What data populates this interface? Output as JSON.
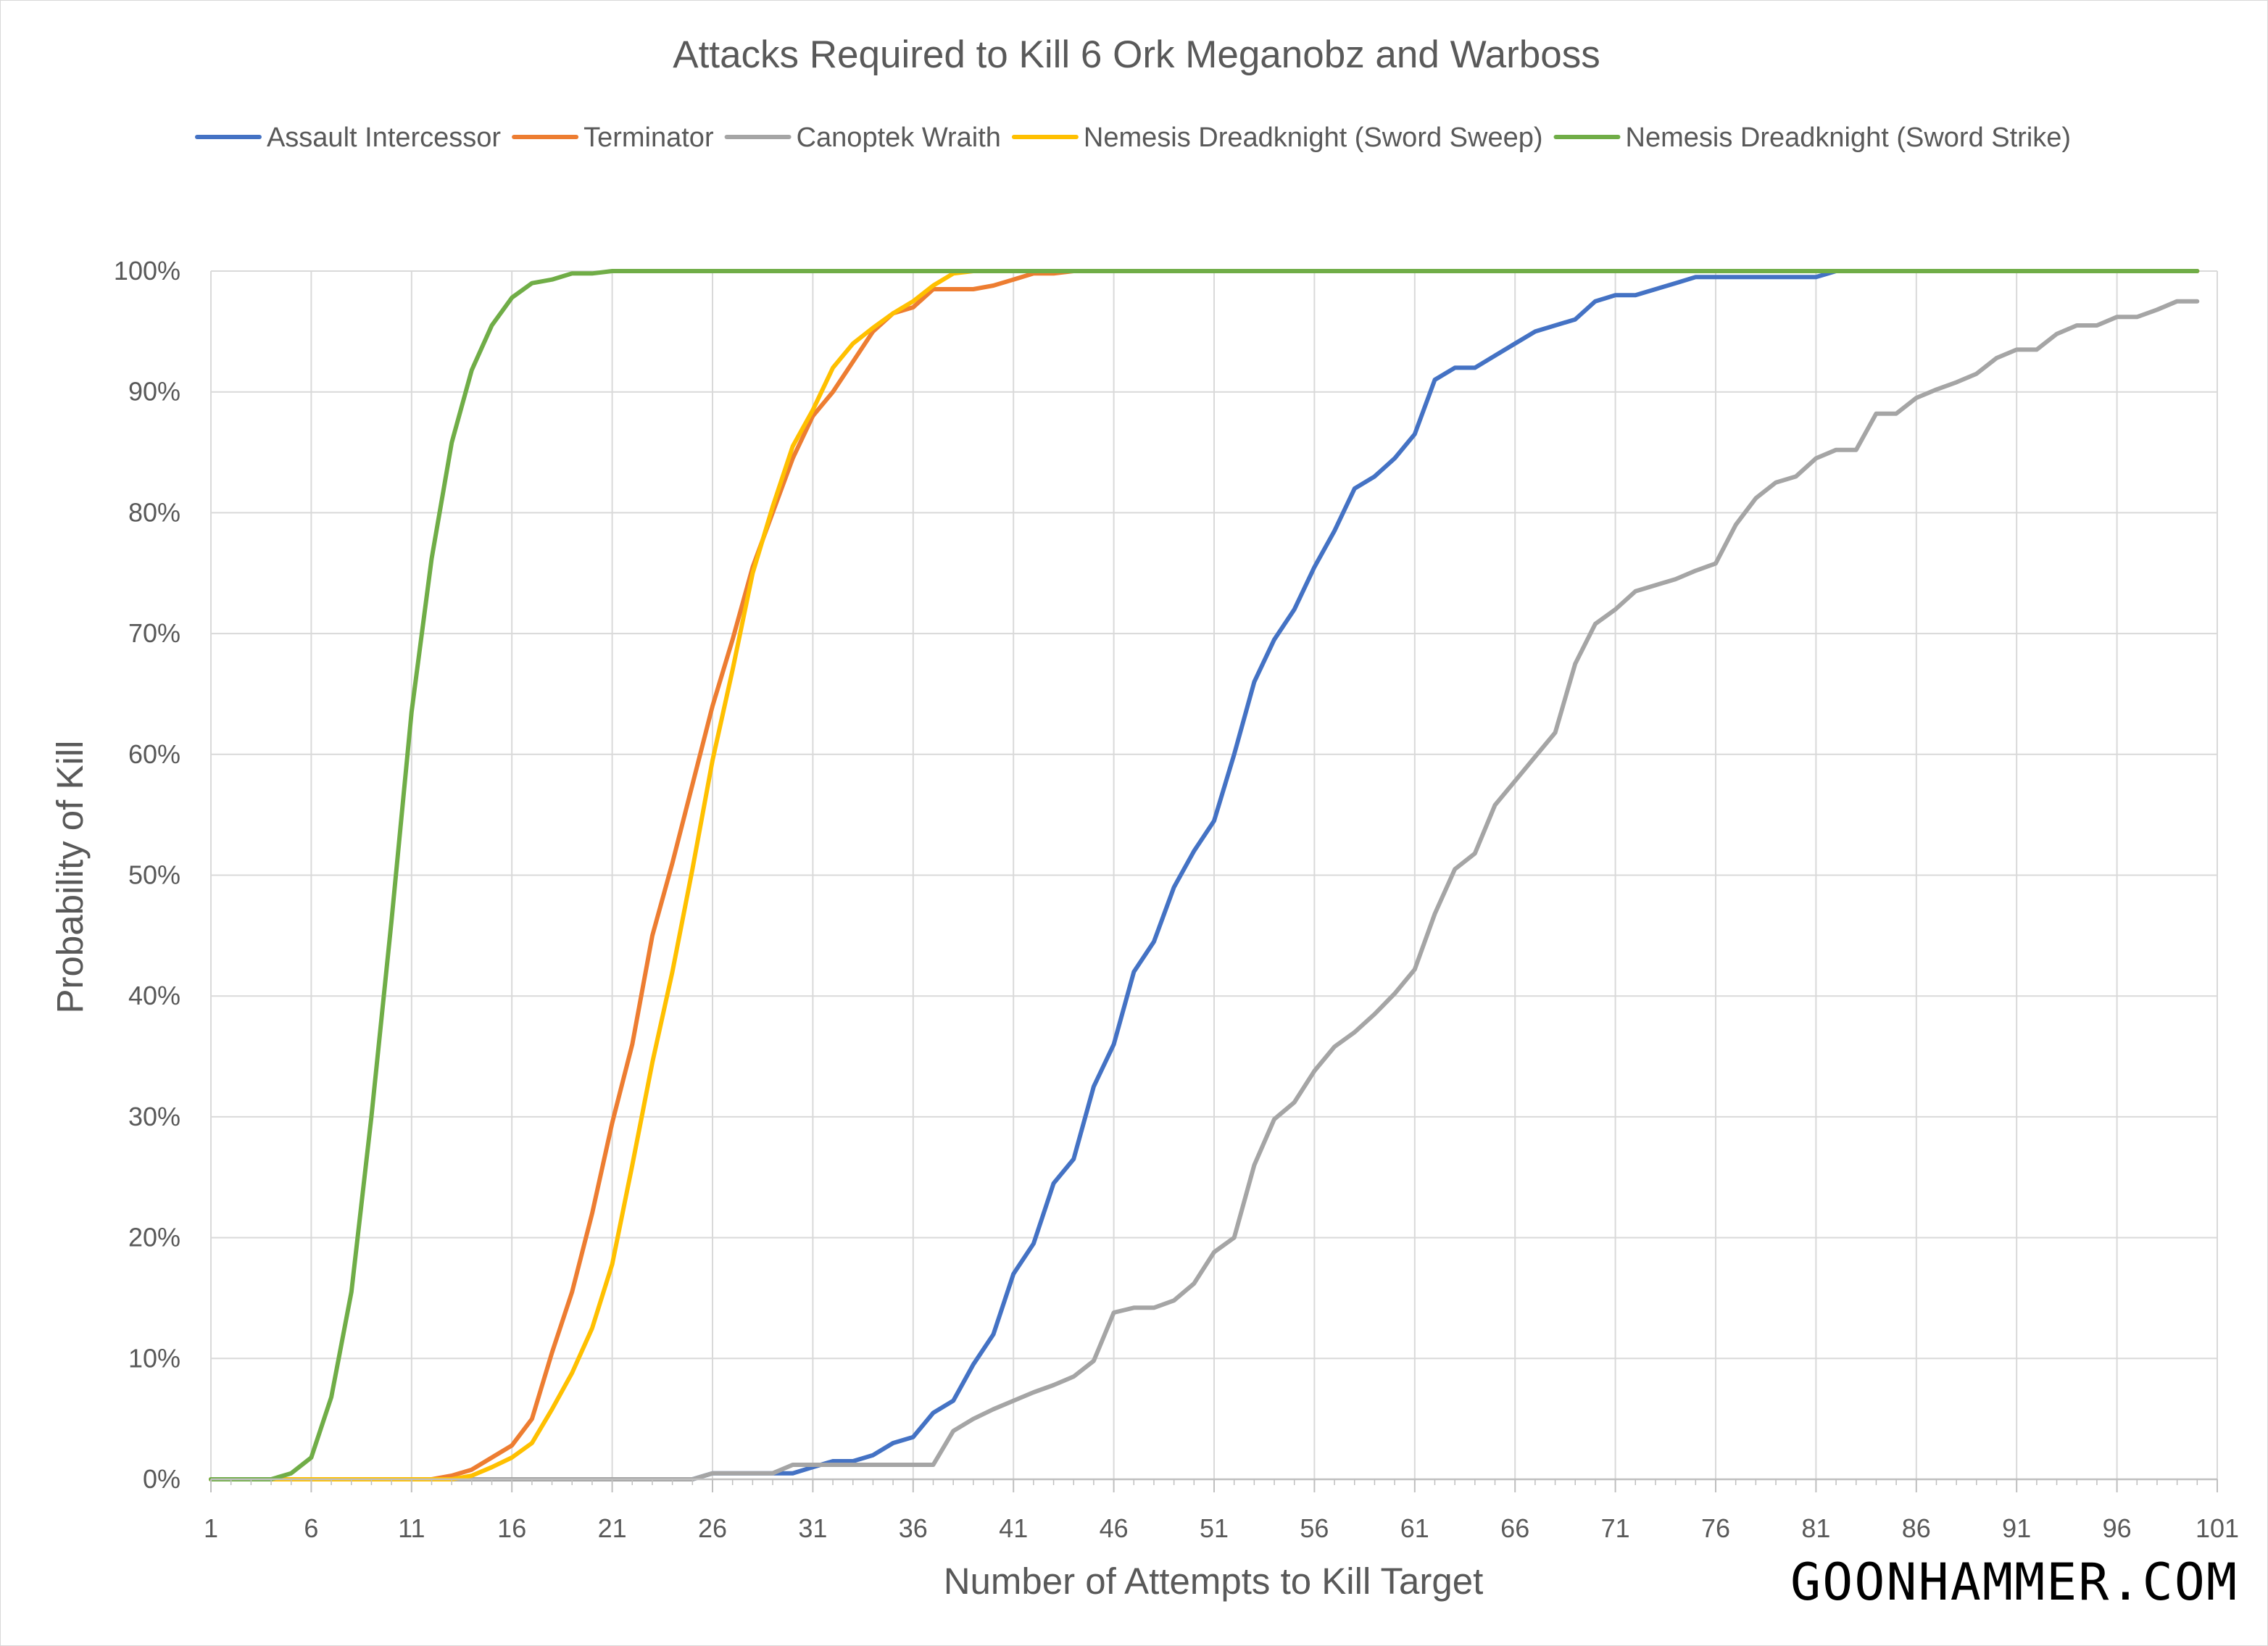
{
  "watermark": "GOONHAMMER.COM",
  "chart_data": {
    "type": "line",
    "title": "Attacks Required to Kill 6 Ork Meganobz and Warboss",
    "xlabel": "Number of Attempts to Kill Target",
    "ylabel": "Probability of Kill",
    "xlim": [
      1,
      101
    ],
    "ylim": [
      0,
      1
    ],
    "x_ticks": [
      1,
      6,
      11,
      16,
      21,
      26,
      31,
      36,
      41,
      46,
      51,
      56,
      61,
      66,
      71,
      76,
      81,
      86,
      91,
      96,
      101
    ],
    "y_ticks": [
      0,
      0.1,
      0.2,
      0.3,
      0.4,
      0.5,
      0.6,
      0.7,
      0.8,
      0.9,
      1.0
    ],
    "y_tick_labels": [
      "0%",
      "10%",
      "20%",
      "30%",
      "40%",
      "50%",
      "60%",
      "70%",
      "80%",
      "90%",
      "100%"
    ],
    "grid": true,
    "legend_position": "top",
    "series": [
      {
        "name": "Assault Intercessor",
        "color": "#4472C4",
        "points": [
          [
            1,
            0
          ],
          [
            25,
            0
          ],
          [
            26,
            0.005
          ],
          [
            30,
            0.005
          ],
          [
            31,
            0.01
          ],
          [
            32,
            0.015
          ],
          [
            33,
            0.015
          ],
          [
            34,
            0.02
          ],
          [
            35,
            0.03
          ],
          [
            36,
            0.035
          ],
          [
            37,
            0.055
          ],
          [
            38,
            0.065
          ],
          [
            39,
            0.095
          ],
          [
            40,
            0.12
          ],
          [
            41,
            0.17
          ],
          [
            42,
            0.195
          ],
          [
            43,
            0.245
          ],
          [
            44,
            0.265
          ],
          [
            45,
            0.325
          ],
          [
            46,
            0.36
          ],
          [
            47,
            0.42
          ],
          [
            48,
            0.445
          ],
          [
            49,
            0.49
          ],
          [
            50,
            0.52
          ],
          [
            51,
            0.545
          ],
          [
            52,
            0.6
          ],
          [
            53,
            0.66
          ],
          [
            54,
            0.695
          ],
          [
            55,
            0.72
          ],
          [
            56,
            0.755
          ],
          [
            57,
            0.785
          ],
          [
            58,
            0.82
          ],
          [
            59,
            0.83
          ],
          [
            60,
            0.845
          ],
          [
            61,
            0.865
          ],
          [
            62,
            0.91
          ],
          [
            63,
            0.92
          ],
          [
            64,
            0.92
          ],
          [
            65,
            0.93
          ],
          [
            66,
            0.94
          ],
          [
            67,
            0.95
          ],
          [
            68,
            0.955
          ],
          [
            69,
            0.96
          ],
          [
            70,
            0.975
          ],
          [
            71,
            0.98
          ],
          [
            72,
            0.98
          ],
          [
            73,
            0.985
          ],
          [
            74,
            0.99
          ],
          [
            75,
            0.995
          ],
          [
            76,
            0.995
          ],
          [
            80,
            0.995
          ],
          [
            81,
            0.995
          ],
          [
            82,
            1.0
          ],
          [
            100,
            1.0
          ]
        ]
      },
      {
        "name": "Terminator",
        "color": "#ED7D31",
        "points": [
          [
            1,
            0
          ],
          [
            12,
            0
          ],
          [
            13,
            0.003
          ],
          [
            14,
            0.008
          ],
          [
            15,
            0.018
          ],
          [
            16,
            0.028
          ],
          [
            17,
            0.05
          ],
          [
            18,
            0.105
          ],
          [
            19,
            0.155
          ],
          [
            20,
            0.22
          ],
          [
            21,
            0.295
          ],
          [
            22,
            0.36
          ],
          [
            23,
            0.45
          ],
          [
            24,
            0.51
          ],
          [
            25,
            0.575
          ],
          [
            26,
            0.64
          ],
          [
            27,
            0.695
          ],
          [
            28,
            0.755
          ],
          [
            29,
            0.8
          ],
          [
            30,
            0.845
          ],
          [
            31,
            0.88
          ],
          [
            32,
            0.9
          ],
          [
            33,
            0.925
          ],
          [
            34,
            0.95
          ],
          [
            35,
            0.965
          ],
          [
            36,
            0.97
          ],
          [
            37,
            0.985
          ],
          [
            39,
            0.985
          ],
          [
            40,
            0.988
          ],
          [
            41,
            0.993
          ],
          [
            42,
            0.998
          ],
          [
            43,
            0.998
          ],
          [
            44,
            1.0
          ],
          [
            100,
            1.0
          ]
        ]
      },
      {
        "name": "Canoptek Wraith",
        "color": "#A5A5A5",
        "points": [
          [
            1,
            0
          ],
          [
            25,
            0
          ],
          [
            26,
            0.005
          ],
          [
            29,
            0.005
          ],
          [
            30,
            0.012
          ],
          [
            31,
            0.012
          ],
          [
            37,
            0.012
          ],
          [
            38,
            0.04
          ],
          [
            39,
            0.05
          ],
          [
            40,
            0.058
          ],
          [
            41,
            0.065
          ],
          [
            42,
            0.072
          ],
          [
            43,
            0.078
          ],
          [
            44,
            0.085
          ],
          [
            45,
            0.098
          ],
          [
            46,
            0.138
          ],
          [
            47,
            0.142
          ],
          [
            48,
            0.142
          ],
          [
            49,
            0.148
          ],
          [
            50,
            0.162
          ],
          [
            51,
            0.188
          ],
          [
            52,
            0.2
          ],
          [
            53,
            0.26
          ],
          [
            54,
            0.298
          ],
          [
            55,
            0.312
          ],
          [
            56,
            0.338
          ],
          [
            57,
            0.358
          ],
          [
            58,
            0.37
          ],
          [
            59,
            0.385
          ],
          [
            60,
            0.402
          ],
          [
            61,
            0.422
          ],
          [
            62,
            0.468
          ],
          [
            63,
            0.505
          ],
          [
            64,
            0.518
          ],
          [
            65,
            0.558
          ],
          [
            66,
            0.578
          ],
          [
            67,
            0.598
          ],
          [
            68,
            0.618
          ],
          [
            69,
            0.675
          ],
          [
            70,
            0.708
          ],
          [
            71,
            0.72
          ],
          [
            72,
            0.735
          ],
          [
            73,
            0.74
          ],
          [
            74,
            0.745
          ],
          [
            75,
            0.752
          ],
          [
            76,
            0.758
          ],
          [
            77,
            0.79
          ],
          [
            78,
            0.812
          ],
          [
            79,
            0.825
          ],
          [
            80,
            0.83
          ],
          [
            81,
            0.845
          ],
          [
            82,
            0.852
          ],
          [
            83,
            0.852
          ],
          [
            84,
            0.882
          ],
          [
            85,
            0.882
          ],
          [
            86,
            0.895
          ],
          [
            87,
            0.902
          ],
          [
            88,
            0.908
          ],
          [
            89,
            0.915
          ],
          [
            90,
            0.928
          ],
          [
            91,
            0.935
          ],
          [
            92,
            0.935
          ],
          [
            93,
            0.948
          ],
          [
            94,
            0.955
          ],
          [
            95,
            0.955
          ],
          [
            96,
            0.962
          ],
          [
            97,
            0.962
          ],
          [
            98,
            0.968
          ],
          [
            99,
            0.975
          ],
          [
            100,
            0.975
          ]
        ]
      },
      {
        "name": "Nemesis Dreadknight (Sword Sweep)",
        "color": "#FFC000",
        "points": [
          [
            1,
            0
          ],
          [
            13,
            0
          ],
          [
            14,
            0.003
          ],
          [
            15,
            0.01
          ],
          [
            16,
            0.018
          ],
          [
            17,
            0.03
          ],
          [
            18,
            0.058
          ],
          [
            19,
            0.088
          ],
          [
            20,
            0.125
          ],
          [
            21,
            0.178
          ],
          [
            22,
            0.26
          ],
          [
            23,
            0.345
          ],
          [
            24,
            0.42
          ],
          [
            25,
            0.505
          ],
          [
            26,
            0.595
          ],
          [
            27,
            0.67
          ],
          [
            28,
            0.75
          ],
          [
            29,
            0.805
          ],
          [
            30,
            0.855
          ],
          [
            31,
            0.885
          ],
          [
            32,
            0.92
          ],
          [
            33,
            0.94
          ],
          [
            34,
            0.953
          ],
          [
            35,
            0.965
          ],
          [
            36,
            0.975
          ],
          [
            37,
            0.988
          ],
          [
            38,
            0.998
          ],
          [
            39,
            1.0
          ],
          [
            100,
            1.0
          ]
        ]
      },
      {
        "name": "Nemesis Dreadknight (Sword Strike)",
        "color": "#70AD47",
        "points": [
          [
            1,
            0
          ],
          [
            4,
            0
          ],
          [
            5,
            0.005
          ],
          [
            6,
            0.018
          ],
          [
            7,
            0.068
          ],
          [
            8,
            0.155
          ],
          [
            9,
            0.3
          ],
          [
            10,
            0.462
          ],
          [
            11,
            0.635
          ],
          [
            12,
            0.762
          ],
          [
            13,
            0.858
          ],
          [
            14,
            0.918
          ],
          [
            15,
            0.955
          ],
          [
            16,
            0.978
          ],
          [
            17,
            0.99
          ],
          [
            18,
            0.993
          ],
          [
            19,
            0.998
          ],
          [
            20,
            0.998
          ],
          [
            21,
            1.0
          ],
          [
            100,
            1.0
          ]
        ]
      }
    ]
  }
}
